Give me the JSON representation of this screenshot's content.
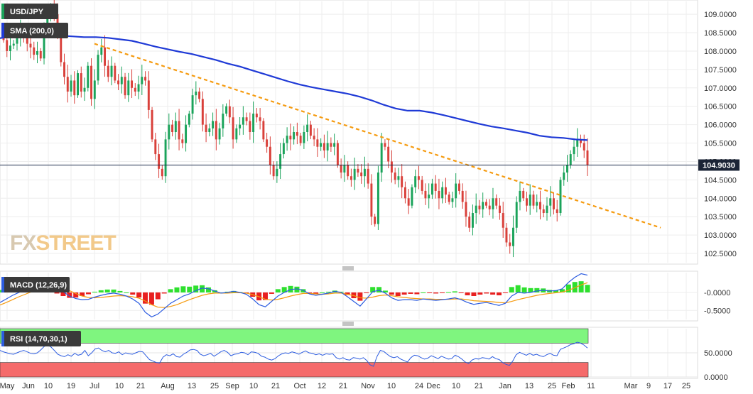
{
  "chart_data": {
    "type": "candlestick",
    "symbol": "USD/JPY",
    "colors": {
      "up": "#1aa35a",
      "down": "#d9403a",
      "sma": "#1f3ad6",
      "trendline": "#f59b10",
      "macd_line": "#2c5ce0",
      "signal_line": "#f59b10",
      "hist_up": "#2ee02e",
      "hist_down": "#e82020",
      "rsi_line": "#2c5ce0",
      "rsi_overbought": "#7ff57f",
      "rsi_oversold": "#f56b6b"
    },
    "price_panel": {
      "ylim": [
        102.25,
        109.35
      ],
      "yticks": [
        "109.0000",
        "108.5000",
        "108.0000",
        "107.5000",
        "107.0000",
        "106.5000",
        "106.0000",
        "105.5000",
        "105.0000",
        "104.5000",
        "104.0000",
        "103.5000",
        "103.0000",
        "102.5000"
      ],
      "current_price_label": "104.9030",
      "current_price": 104.903,
      "close": [
        108.3,
        108.0,
        108.15,
        108.2,
        108.4,
        108.55,
        108.35,
        108.2,
        108.1,
        107.9,
        108.0,
        107.8,
        108.6,
        108.9,
        109.2,
        109.0,
        108.6,
        107.7,
        107.3,
        106.9,
        107.2,
        106.8,
        107.4,
        106.9,
        107.0,
        107.6,
        106.7,
        107.2,
        107.9,
        108.1,
        107.6,
        107.3,
        107.6,
        107.2,
        107.1,
        107.3,
        106.8,
        107.2,
        107.0,
        106.9,
        107.1,
        107.3,
        107.2,
        106.4,
        105.6,
        105.2,
        104.8,
        104.6,
        105.6,
        106.0,
        105.8,
        106.1,
        105.6,
        105.5,
        106.0,
        106.3,
        106.8,
        106.9,
        106.7,
        106.0,
        105.8,
        105.9,
        106.1,
        105.6,
        105.9,
        106.3,
        106.5,
        106.2,
        105.6,
        105.9,
        106.0,
        106.2,
        106.1,
        105.8,
        106.3,
        106.2,
        106.1,
        105.6,
        105.4,
        104.9,
        104.6,
        104.8,
        105.2,
        105.5,
        105.7,
        105.6,
        105.8,
        105.7,
        105.5,
        105.8,
        106.0,
        105.7,
        105.6,
        105.4,
        105.5,
        105.3,
        105.5,
        105.4,
        105.5,
        104.9,
        104.7,
        104.9,
        104.6,
        104.5,
        104.8,
        104.7,
        104.6,
        104.8,
        104.4,
        103.5,
        103.3,
        104.7,
        105.5,
        105.4,
        105.0,
        104.7,
        104.5,
        104.6,
        104.3,
        104.0,
        103.8,
        104.3,
        104.6,
        104.5,
        104.2,
        104.0,
        104.1,
        104.4,
        104.2,
        104.0,
        104.3,
        104.1,
        103.9,
        104.0,
        104.4,
        104.2,
        103.9,
        103.5,
        103.2,
        103.6,
        103.8,
        103.7,
        103.9,
        103.8,
        103.7,
        104.0,
        103.8,
        103.6,
        103.2,
        102.8,
        102.7,
        103.2,
        103.9,
        104.2,
        104.0,
        103.8,
        104.1,
        103.8,
        103.9,
        103.7,
        103.6,
        103.8,
        104.0,
        103.7,
        103.6,
        104.5,
        104.7,
        104.9,
        105.2,
        105.4,
        105.6,
        105.5,
        105.3,
        104.9
      ],
      "sma200": [
        108.35,
        108.4,
        108.45,
        108.48,
        108.46,
        108.42,
        108.4,
        108.38,
        108.38,
        108.36,
        108.32,
        108.28,
        108.2,
        108.12,
        108.05,
        107.98,
        107.92,
        107.84,
        107.76,
        107.66,
        107.58,
        107.48,
        107.38,
        107.28,
        107.18,
        107.09,
        107.02,
        106.96,
        106.9,
        106.84,
        106.76,
        106.66,
        106.54,
        106.44,
        106.38,
        106.38,
        106.33,
        106.26,
        106.18,
        106.1,
        106.02,
        105.95,
        105.9,
        105.84,
        105.78,
        105.7,
        105.66,
        105.64,
        105.6,
        105.58
      ],
      "trendline": {
        "start": {
          "date": "Jul 1",
          "price": 108.2
        },
        "end": {
          "date": "Mar 13",
          "price": 103.2
        }
      }
    },
    "macd_panel": {
      "label": "MACD (12,26,9)",
      "ylim": [
        -0.75,
        0.55
      ],
      "yticks": [
        "-0.0000",
        "-0.5000"
      ],
      "macd": [
        -0.28,
        -0.18,
        -0.08,
        0.0,
        0.08,
        0.2,
        0.35,
        0.4,
        0.3,
        0.15,
        0.02,
        -0.1,
        -0.17,
        -0.2,
        -0.19,
        -0.13,
        -0.08,
        -0.04,
        -0.02,
        -0.05,
        -0.1,
        -0.18,
        -0.3,
        -0.55,
        -0.68,
        -0.6,
        -0.45,
        -0.3,
        -0.2,
        -0.1,
        -0.04,
        0.05,
        0.12,
        0.1,
        0.04,
        -0.02,
        0.0,
        0.03,
        0.0,
        -0.05,
        -0.18,
        -0.34,
        -0.4,
        -0.25,
        -0.1,
        0.0,
        0.08,
        0.1,
        0.06,
        -0.04,
        -0.08,
        -0.05,
        -0.02,
        0.03,
        0.0,
        -0.12,
        -0.25,
        -0.38,
        -0.18,
        0.02,
        0.06,
        -0.02,
        -0.15,
        -0.22,
        -0.2,
        -0.2,
        -0.22,
        -0.18,
        -0.2,
        -0.22,
        -0.2,
        -0.18,
        -0.15,
        -0.2,
        -0.28,
        -0.33,
        -0.3,
        -0.28,
        -0.32,
        -0.36,
        -0.3,
        -0.1,
        0.0,
        -0.02,
        0.0,
        0.04,
        0.06,
        0.04,
        0.05,
        0.1,
        0.28,
        0.42,
        0.52,
        0.48
      ],
      "signal": [
        -0.35,
        -0.28,
        -0.2,
        -0.12,
        -0.05,
        0.02,
        0.1,
        0.18,
        0.2,
        0.18,
        0.12,
        0.05,
        -0.03,
        -0.1,
        -0.14,
        -0.15,
        -0.14,
        -0.12,
        -0.1,
        -0.09,
        -0.1,
        -0.12,
        -0.16,
        -0.24,
        -0.34,
        -0.41,
        -0.42,
        -0.39,
        -0.34,
        -0.27,
        -0.2,
        -0.14,
        -0.08,
        -0.04,
        -0.02,
        -0.02,
        -0.02,
        -0.01,
        -0.01,
        -0.02,
        -0.06,
        -0.12,
        -0.19,
        -0.21,
        -0.19,
        -0.15,
        -0.1,
        -0.06,
        -0.03,
        -0.03,
        -0.04,
        -0.05,
        -0.04,
        -0.02,
        -0.02,
        -0.05,
        -0.09,
        -0.15,
        -0.16,
        -0.13,
        -0.09,
        -0.07,
        -0.09,
        -0.12,
        -0.14,
        -0.16,
        -0.17,
        -0.18,
        -0.18,
        -0.19,
        -0.19,
        -0.19,
        -0.18,
        -0.18,
        -0.2,
        -0.23,
        -0.24,
        -0.25,
        -0.26,
        -0.28,
        -0.29,
        -0.25,
        -0.2,
        -0.16,
        -0.12,
        -0.08,
        -0.05,
        -0.03,
        -0.01,
        0.01,
        0.06,
        0.13,
        0.21,
        0.27
      ]
    },
    "rsi_panel": {
      "label": "RSI (14,70,30,1)",
      "ylim": [
        0,
        100
      ],
      "overbought": 70,
      "oversold": 30,
      "yticks": [
        "50.0000",
        "0.0000"
      ],
      "rsi": [
        55,
        52,
        50,
        48,
        47,
        50,
        53,
        55,
        52,
        49,
        48,
        50,
        56,
        63,
        66,
        62,
        55,
        47,
        44,
        42,
        46,
        43,
        49,
        45,
        47,
        55,
        44,
        50,
        58,
        60,
        55,
        52,
        55,
        50,
        49,
        52,
        46,
        50,
        48,
        47,
        50,
        53,
        52,
        44,
        36,
        33,
        30,
        29,
        41,
        46,
        44,
        48,
        42,
        41,
        47,
        51,
        56,
        57,
        55,
        47,
        44,
        46,
        49,
        43,
        47,
        52,
        55,
        51,
        44,
        47,
        48,
        51,
        50,
        46,
        52,
        51,
        49,
        43,
        41,
        37,
        35,
        38,
        44,
        48,
        50,
        49,
        52,
        50,
        47,
        51,
        54,
        50,
        49,
        46,
        48,
        45,
        48,
        47,
        48,
        40,
        37,
        40,
        36,
        35,
        40,
        39,
        37,
        40,
        34,
        25,
        22,
        42,
        55,
        53,
        47,
        42,
        40,
        42,
        37,
        34,
        31,
        40,
        45,
        44,
        40,
        37,
        39,
        44,
        41,
        38,
        43,
        40,
        37,
        38,
        45,
        42,
        37,
        31,
        28,
        35,
        38,
        37,
        40,
        39,
        37,
        42,
        38,
        36,
        30,
        26,
        24,
        33,
        46,
        51,
        48,
        45,
        49,
        45,
        47,
        44,
        42,
        46,
        49,
        45,
        44,
        57,
        60,
        63,
        67,
        69,
        72,
        70,
        66,
        60
      ]
    },
    "x_axis": {
      "ticks": [
        "May",
        "Jun",
        "10",
        "19",
        "Jul",
        "10",
        "21",
        "Aug",
        "13",
        "25",
        "Sep",
        "10",
        "21",
        "Oct",
        "12",
        "21",
        "Nov",
        "10",
        "24",
        "Dec",
        "10",
        "21",
        "Jan",
        "13",
        "25",
        "Feb",
        "11",
        "Mar",
        "9",
        "17",
        "25"
      ]
    }
  },
  "legend": {
    "price_label": "USD/JPY",
    "sma_label": "SMA (200,0)"
  },
  "watermark": {
    "part1": "FX",
    "part2": "STREET"
  }
}
